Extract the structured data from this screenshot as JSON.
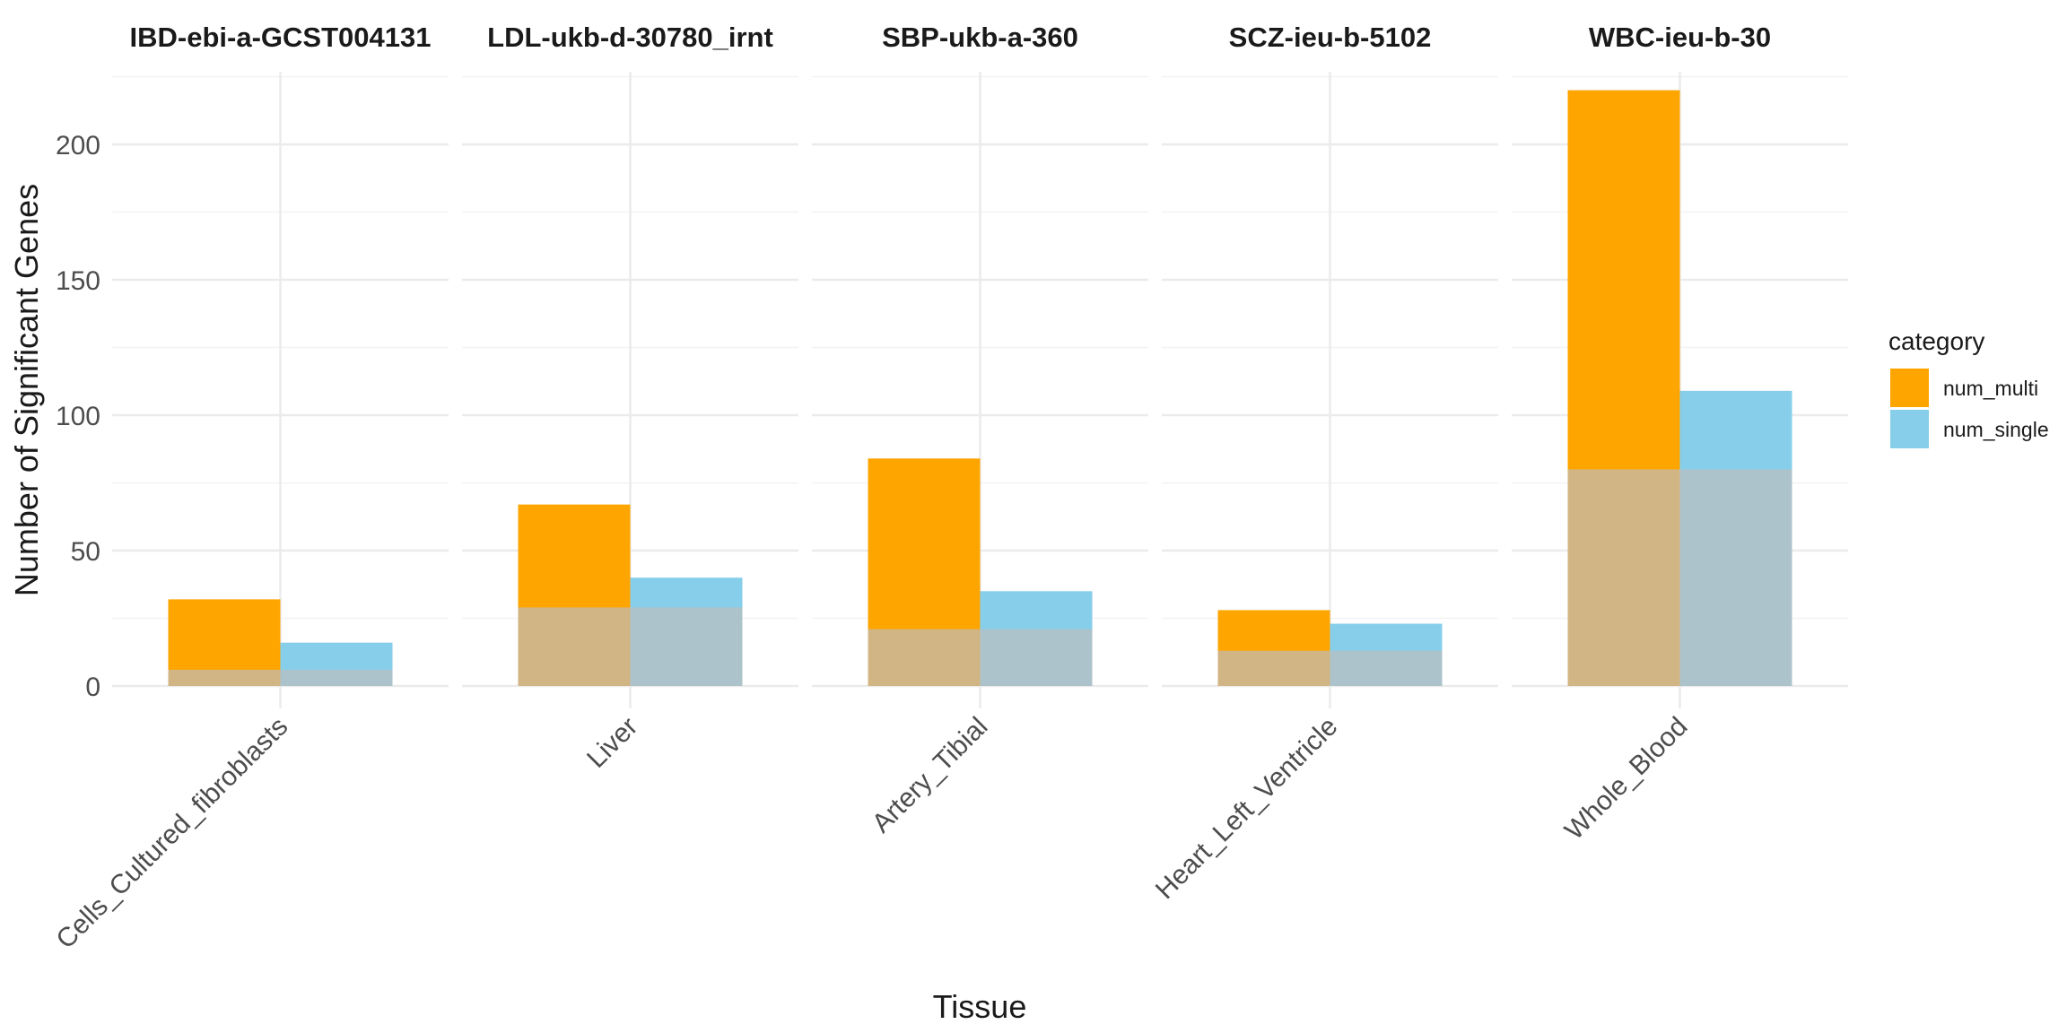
{
  "chart_data": {
    "type": "bar",
    "subtype": "faceted grouped bars with overlap",
    "xlabel": "Tissue",
    "ylabel": "Number of Significant Genes",
    "ylim": [
      0,
      225
    ],
    "yticks": [
      0,
      50,
      100,
      150,
      200
    ],
    "grid": true,
    "legend": {
      "title": "category",
      "position": "right",
      "entries": [
        {
          "name": "num_multi",
          "color": "#FFA500"
        },
        {
          "name": "num_single",
          "color": "#87CEEB"
        }
      ]
    },
    "overlap_colors": {
      "multi": "#D2B584",
      "single": "#ADC3CB"
    },
    "facets": [
      {
        "title": "IBD-ebi-a-GCST004131",
        "tissue": "Cells_Cultured_fibroblasts",
        "num_multi": 32,
        "num_single": 16,
        "overlap": 6
      },
      {
        "title": "LDL-ukb-d-30780_irnt",
        "tissue": "Liver",
        "num_multi": 67,
        "num_single": 40,
        "overlap": 29
      },
      {
        "title": "SBP-ukb-a-360",
        "tissue": "Artery_Tibial",
        "num_multi": 84,
        "num_single": 35,
        "overlap": 21
      },
      {
        "title": "SCZ-ieu-b-5102",
        "tissue": "Heart_Left_Ventricle",
        "num_multi": 28,
        "num_single": 23,
        "overlap": 13
      },
      {
        "title": "WBC-ieu-b-30",
        "tissue": "Whole_Blood",
        "num_multi": 220,
        "num_single": 109,
        "overlap": 80
      }
    ]
  }
}
